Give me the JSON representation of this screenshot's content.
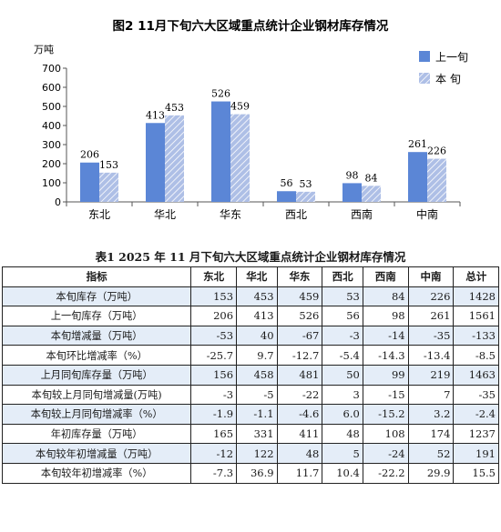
{
  "chart_data": {
    "type": "bar",
    "title": "图2   11月下旬六大区域重点统计企业钢材库存情况",
    "ylabel": "万吨",
    "categories": [
      "东北",
      "华北",
      "华东",
      "西北",
      "西南",
      "中南"
    ],
    "series": [
      {
        "name": "上一旬",
        "values": [
          206,
          413,
          526,
          56,
          98,
          261
        ]
      },
      {
        "name": "本  旬",
        "values": [
          153,
          453,
          459,
          53,
          84,
          226
        ]
      }
    ],
    "ylim": [
      0,
      700
    ],
    "yticks": [
      0,
      100,
      200,
      300,
      400,
      500,
      600,
      700
    ],
    "legend": "top-right",
    "grid": false,
    "colors": {
      "series1": "#5b86d6",
      "series2": "#aebfe6",
      "hatch": "#ffffff"
    }
  },
  "table": {
    "title": "表1   2025 年 11 月下旬六大区域重点统计企业钢材库存情况",
    "headers": [
      "指标",
      "东北",
      "华北",
      "华东",
      "西北",
      "西南",
      "中南",
      "总计"
    ],
    "rows": [
      [
        "本旬库存（万吨）",
        "153",
        "453",
        "459",
        "53",
        "84",
        "226",
        "1428"
      ],
      [
        "上一旬库存（万吨）",
        "206",
        "413",
        "526",
        "56",
        "98",
        "261",
        "1561"
      ],
      [
        "本旬增减量（万吨）",
        "-53",
        "40",
        "-67",
        "-3",
        "-14",
        "-35",
        "-133"
      ],
      [
        "本旬环比增减率（%）",
        "-25.7",
        "9.7",
        "-12.7",
        "-5.4",
        "-14.3",
        "-13.4",
        "-8.5"
      ],
      [
        "上月同旬库存量（万吨）",
        "156",
        "458",
        "481",
        "50",
        "99",
        "219",
        "1463"
      ],
      [
        "本旬较上月同旬增减量(万吨)",
        "-3",
        "-5",
        "-22",
        "3",
        "-15",
        "7",
        "-35"
      ],
      [
        "本旬较上月同旬增减率（%）",
        "-1.9",
        "-1.1",
        "-4.6",
        "6.0",
        "-15.2",
        "3.2",
        "-2.4"
      ],
      [
        "年初库存量（万吨）",
        "165",
        "331",
        "411",
        "48",
        "108",
        "174",
        "1237"
      ],
      [
        "本旬较年初增减量（万吨）",
        "-12",
        "122",
        "48",
        "5",
        "-24",
        "52",
        "191"
      ],
      [
        "本旬较年初增减率（%）",
        "-7.3",
        "36.9",
        "11.7",
        "10.4",
        "-22.2",
        "29.9",
        "15.5"
      ]
    ]
  }
}
